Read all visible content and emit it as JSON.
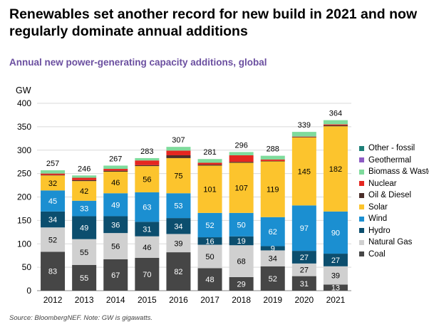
{
  "title": "Renewables set another record for new build in 2021 and now regularly dominate annual additions",
  "subtitle": "Annual new power-generating capacity additions, global",
  "source": "Source: BloombergNEF. Note: GW is gigawatts.",
  "chart_data": {
    "type": "bar",
    "stacked": true,
    "ylabel": "GW",
    "ylim": [
      0,
      400
    ],
    "yticks": [
      0,
      50,
      100,
      150,
      200,
      250,
      300,
      350,
      400
    ],
    "grid": true,
    "legend_position": "right",
    "categories": [
      "2012",
      "2013",
      "2014",
      "2015",
      "2016",
      "2017",
      "2018",
      "2019",
      "2020",
      "2021"
    ],
    "totals": [
      257,
      246,
      267,
      283,
      307,
      281,
      296,
      288,
      339,
      364
    ],
    "series": [
      {
        "name": "Coal",
        "color": "#464646",
        "label_color": "#ffffff",
        "values": [
          83,
          55,
          67,
          70,
          82,
          48,
          29,
          52,
          31,
          13
        ]
      },
      {
        "name": "Natural Gas",
        "color": "#d0d0d0",
        "label_color": "#000000",
        "values": [
          52,
          55,
          56,
          46,
          39,
          50,
          68,
          34,
          27,
          39
        ]
      },
      {
        "name": "Hydro",
        "color": "#0c4e6e",
        "label_color": "#ffffff",
        "values": [
          34,
          49,
          36,
          31,
          34,
          16,
          19,
          9,
          27,
          27
        ]
      },
      {
        "name": "Wind",
        "color": "#1b8fd1",
        "label_color": "#ffffff",
        "values": [
          45,
          33,
          49,
          63,
          53,
          52,
          50,
          62,
          97,
          90
        ]
      },
      {
        "name": "Solar",
        "color": "#fcc42d",
        "label_color": "#000000",
        "values": [
          32,
          42,
          46,
          56,
          75,
          101,
          107,
          119,
          145,
          182
        ]
      },
      {
        "name": "Oil & Diesel",
        "color": "#4a2e2a",
        "label_color": "#ffffff",
        "values": [
          1,
          2,
          2,
          2,
          6,
          2,
          2,
          1,
          1,
          2
        ]
      },
      {
        "name": "Nuclear",
        "color": "#e52620",
        "label_color": "#ffffff",
        "values": [
          3,
          5,
          4,
          10,
          10,
          4,
          14,
          3,
          1,
          2
        ]
      },
      {
        "name": "Biomass & Waste",
        "color": "#7fdb9c",
        "label_color": "#000000",
        "values": [
          7,
          5,
          7,
          5,
          8,
          8,
          7,
          8,
          10,
          9
        ]
      },
      {
        "name": "Geothermal",
        "color": "#8e5cc4",
        "label_color": "#ffffff",
        "values": [
          0,
          0,
          0,
          0,
          0,
          0,
          0,
          0,
          0,
          0
        ]
      },
      {
        "name": "Other - fossil",
        "color": "#1e7f78",
        "label_color": "#ffffff",
        "values": [
          0,
          0,
          0,
          0,
          0,
          0,
          0,
          0,
          0,
          0
        ]
      }
    ],
    "labeled_series": [
      "Coal",
      "Natural Gas",
      "Hydro",
      "Wind",
      "Solar"
    ],
    "legend_order": [
      "Other - fossil",
      "Geothermal",
      "Biomass & Waste",
      "Nuclear",
      "Oil & Diesel",
      "Solar",
      "Wind",
      "Hydro",
      "Natural Gas",
      "Coal"
    ]
  }
}
